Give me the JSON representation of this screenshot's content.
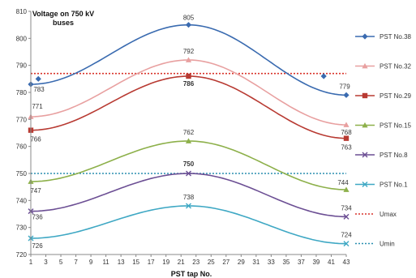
{
  "chart_data": {
    "type": "line",
    "title_lines": [
      "Voltage on 750 kV",
      "buses"
    ],
    "xlabel": "PST tap No.",
    "ylabel": "",
    "x": [
      1,
      2,
      22,
      40,
      43
    ],
    "xlim": [
      1,
      43
    ],
    "ylim": [
      720,
      810
    ],
    "xticks": [
      "1",
      "3",
      "5",
      "7",
      "9",
      "11",
      "13",
      "15",
      "17",
      "19",
      "21",
      "23",
      "25",
      "27",
      "29",
      "31",
      "33",
      "35",
      "37",
      "39",
      "41",
      "43"
    ],
    "yticks": [
      "720",
      "730",
      "740",
      "750",
      "760",
      "770",
      "780",
      "790",
      "800",
      "810"
    ],
    "grid": false,
    "legend_position": "right",
    "series": [
      {
        "name": "PST No.38",
        "color": "#3a6bb0",
        "marker": "diamond",
        "x": [
          1,
          2,
          22,
          40,
          43
        ],
        "values": [
          783,
          785,
          805,
          786,
          779
        ]
      },
      {
        "name": "PST No.32",
        "color": "#e8a0a0",
        "marker": "triangle",
        "x": [
          1,
          22,
          43
        ],
        "values": [
          771,
          792,
          768
        ]
      },
      {
        "name": "PST No.29",
        "color": "#b83a32",
        "marker": "square",
        "x": [
          1,
          22,
          43
        ],
        "values": [
          766,
          786,
          763
        ]
      },
      {
        "name": "PST No.15",
        "color": "#8db04a",
        "marker": "triangle",
        "x": [
          1,
          22,
          43
        ],
        "values": [
          747,
          762,
          744
        ]
      },
      {
        "name": "PST No.8",
        "color": "#6c4f94",
        "marker": "x",
        "x": [
          1,
          22,
          43
        ],
        "values": [
          736,
          750,
          734
        ]
      },
      {
        "name": "PST No.1",
        "color": "#3fa8c4",
        "marker": "x",
        "x": [
          1,
          22,
          43
        ],
        "values": [
          726,
          738,
          724
        ]
      }
    ],
    "reference_lines": [
      {
        "name": "Umax",
        "color": "#d9342b",
        "style": "dotted",
        "value": 787
      },
      {
        "name": "Umin",
        "color": "#2b8fb0",
        "style": "dotted",
        "value": 750
      }
    ],
    "data_labels": [
      {
        "text": "805",
        "x": 22,
        "y": 805,
        "color": "#333333",
        "bold": false
      },
      {
        "text": "783",
        "x": 1,
        "y": 783,
        "color": "#333333",
        "bold": false
      },
      {
        "text": "779",
        "x": 43,
        "y": 779,
        "color": "#333333",
        "bold": false
      },
      {
        "text": "792",
        "x": 22,
        "y": 792,
        "color": "#333333",
        "bold": false
      },
      {
        "text": "771",
        "x": 1,
        "y": 771,
        "color": "#333333",
        "bold": false
      },
      {
        "text": "768",
        "x": 43,
        "y": 768,
        "color": "#333333",
        "bold": false
      },
      {
        "text": "786",
        "x": 22,
        "y": 786,
        "color": "#c0392b",
        "bold": true
      },
      {
        "text": "766",
        "x": 1,
        "y": 766,
        "color": "#333333",
        "bold": false
      },
      {
        "text": "763",
        "x": 43,
        "y": 763,
        "color": "#333333",
        "bold": false
      },
      {
        "text": "762",
        "x": 22,
        "y": 762,
        "color": "#333333",
        "bold": false
      },
      {
        "text": "747",
        "x": 1,
        "y": 747,
        "color": "#333333",
        "bold": false
      },
      {
        "text": "744",
        "x": 43,
        "y": 744,
        "color": "#333333",
        "bold": false
      },
      {
        "text": "750",
        "x": 22,
        "y": 750,
        "color": "#c0392b",
        "bold": true
      },
      {
        "text": "736",
        "x": 1,
        "y": 736,
        "color": "#333333",
        "bold": false
      },
      {
        "text": "734",
        "x": 43,
        "y": 734,
        "color": "#333333",
        "bold": false
      },
      {
        "text": "738",
        "x": 22,
        "y": 738,
        "color": "#333333",
        "bold": false
      },
      {
        "text": "726",
        "x": 1,
        "y": 726,
        "color": "#333333",
        "bold": false
      },
      {
        "text": "724",
        "x": 43,
        "y": 724,
        "color": "#333333",
        "bold": false
      }
    ]
  }
}
